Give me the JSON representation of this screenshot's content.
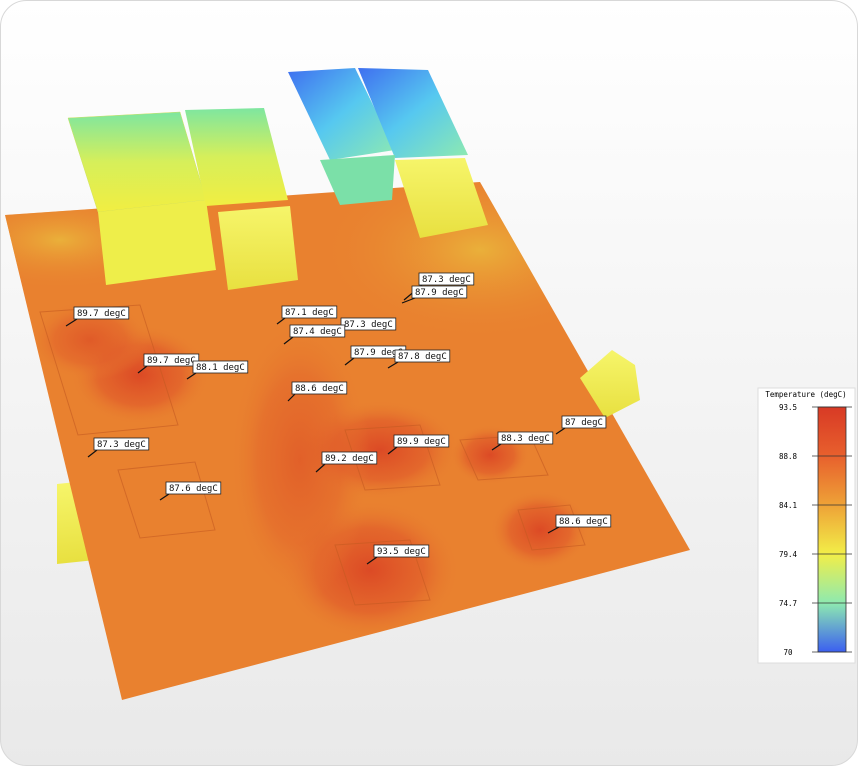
{
  "labels": [
    "87.3 degC",
    "87.9 degC",
    "89.7 degC",
    "87.1 degC",
    "87.3 degC",
    "87.4 degC",
    "87.9 degC",
    "87.8 degC",
    "89.7 degC",
    "88.1 degC",
    "88.6 degC",
    "87.3 degC",
    "89.9 degC",
    "88.3 degC",
    "87 degC",
    "89.2 degC",
    "87.6 degC",
    "88.6 degC",
    "93.5 degC"
  ],
  "legend": {
    "title": "Temperature (degC)",
    "range": [
      70,
      93.5
    ],
    "ticks": [
      93.5,
      88.8,
      84.1,
      79.4,
      74.7,
      70
    ]
  }
}
